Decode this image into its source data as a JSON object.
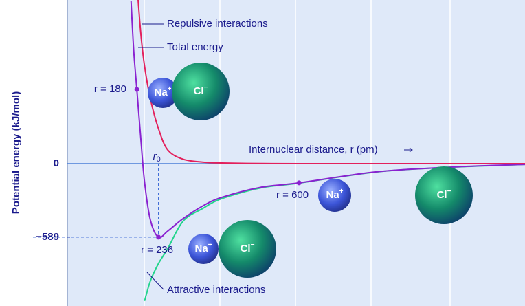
{
  "chart_data": {
    "type": "line",
    "y_label": "Potential energy (kJ/mol)",
    "x_label": "Internuclear distance, r (pm)",
    "xlim": [
      0,
      1185
    ],
    "ylim": [
      -1140,
      1310
    ],
    "yticks": [
      0,
      {
        "value": -589,
        "label": "−589"
      }
    ],
    "x": [
      165,
      172,
      180,
      190,
      200,
      215,
      236,
      260,
      300,
      350,
      400,
      500,
      600,
      800,
      1000,
      1200
    ],
    "series": [
      {
        "name": "Attractive interactions",
        "color": "#22d48c",
        "values": [
          null,
          null,
          null,
          null,
          -1100,
          -940,
          -800,
          -680,
          -460,
          -360,
          -280,
          -195,
          -156,
          -67,
          -28,
          -5
        ]
      },
      {
        "name": "Repulsive interactions",
        "color": "#e3205c",
        "values": [
          null,
          null,
          1450,
          1050,
          780,
          520,
          280,
          110,
          35,
          12,
          5,
          1,
          0,
          0,
          0,
          0
        ]
      },
      {
        "name": "Total energy",
        "color": "#8a22d0",
        "values": [
          1300,
          900,
          594,
          209,
          -149,
          -451,
          -589,
          -540,
          -440,
          -340,
          -270,
          -190,
          -154,
          -66,
          -27,
          -5
        ]
      }
    ],
    "points": [
      {
        "x": 180,
        "y": 594,
        "label": "r = 180"
      },
      {
        "x": 236,
        "y": -589,
        "label": "r = 236"
      },
      {
        "x": 600,
        "y": -154,
        "label": "r = 600"
      }
    ],
    "r0_label": {
      "main": "r",
      "sub": "0"
    },
    "ions": [
      {
        "symbol": "Na",
        "charge": "+"
      },
      {
        "symbol": "Cl",
        "charge": "−"
      },
      {
        "symbol": "Na",
        "charge": "+"
      },
      {
        "symbol": "Cl",
        "charge": "−"
      },
      {
        "symbol": "Na",
        "charge": "+"
      },
      {
        "symbol": "Cl",
        "charge": "−"
      }
    ]
  }
}
